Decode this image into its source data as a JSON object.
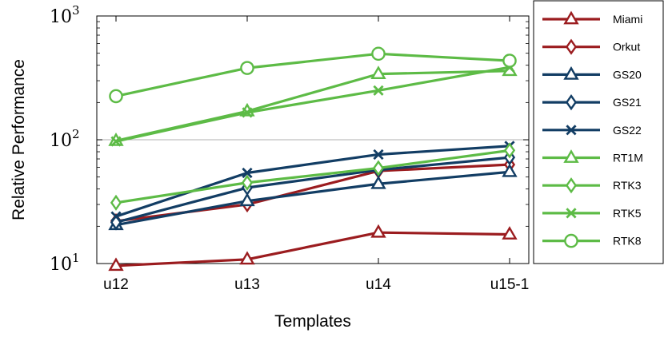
{
  "chart_data": {
    "type": "line",
    "title": "",
    "xlabel": "Templates",
    "ylabel": "Relative Performance",
    "categories": [
      "u12",
      "u13",
      "u14",
      "u15-1"
    ],
    "y_scale": "log",
    "ylim": [
      10,
      1000
    ],
    "y_ticks": [
      {
        "value": 10,
        "base": "10",
        "exp": "1"
      },
      {
        "value": 100,
        "base": "10",
        "exp": "2"
      },
      {
        "value": 1000,
        "base": "10",
        "exp": "3"
      }
    ],
    "grid": "horizontal-major",
    "legend_position": "right-outside",
    "series": [
      {
        "name": "Miami",
        "color": "#9b1c1f",
        "marker": "triangle",
        "values": [
          9.6,
          10.8,
          17.8,
          17.2
        ]
      },
      {
        "name": "Orkut",
        "color": "#9b1c1f",
        "marker": "diamond",
        "values": [
          22,
          30,
          56,
          63
        ]
      },
      {
        "name": "GS20",
        "color": "#123d64",
        "marker": "triangle",
        "values": [
          20.5,
          32,
          44,
          55
        ]
      },
      {
        "name": "GS21",
        "color": "#123d64",
        "marker": "diamond",
        "values": [
          21.5,
          41,
          57,
          72
        ]
      },
      {
        "name": "GS22",
        "color": "#123d64",
        "marker": "x",
        "values": [
          24,
          54,
          76,
          89
        ]
      },
      {
        "name": "RT1M",
        "color": "#5dbb46",
        "marker": "triangle",
        "values": [
          98,
          170,
          340,
          360
        ]
      },
      {
        "name": "RTK3",
        "color": "#5dbb46",
        "marker": "diamond",
        "values": [
          31,
          45,
          59,
          82
        ]
      },
      {
        "name": "RTK5",
        "color": "#5dbb46",
        "marker": "x",
        "values": [
          97,
          166,
          250,
          385
        ]
      },
      {
        "name": "RTK8",
        "color": "#5dbb46",
        "marker": "circle",
        "values": [
          225,
          380,
          495,
          435
        ]
      }
    ]
  }
}
